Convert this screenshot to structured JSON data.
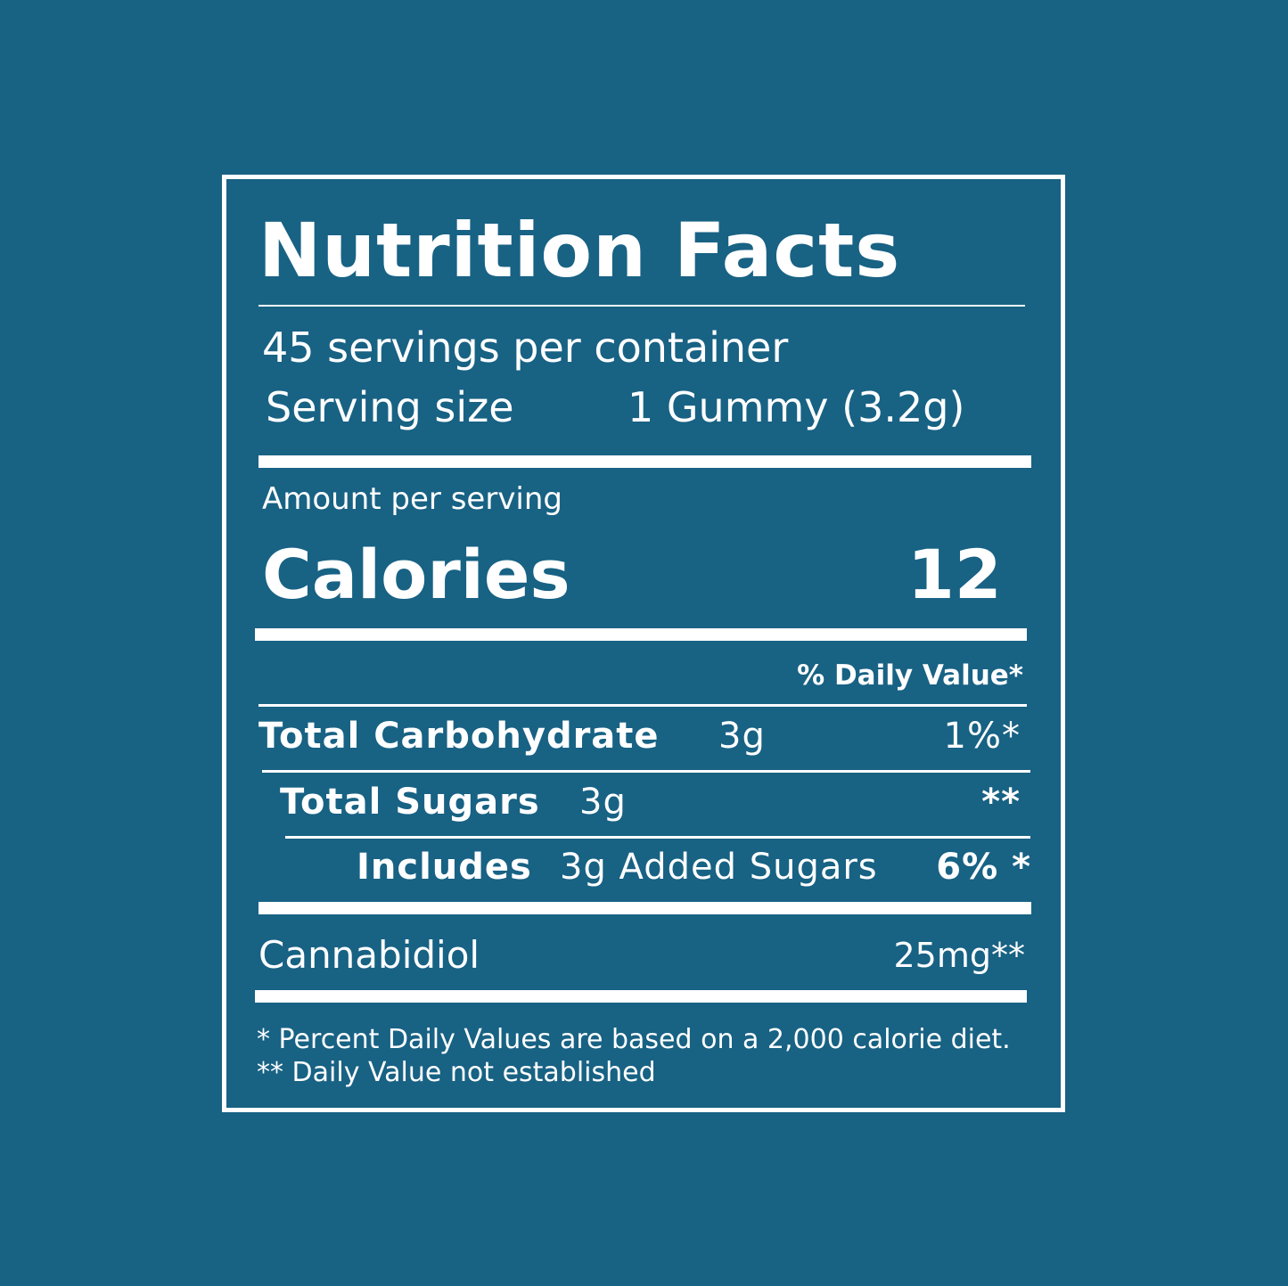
{
  "colors": {
    "background": "#186284",
    "text": "#ffffff"
  },
  "label": {
    "title": "Nutrition Facts",
    "servings_per_container": "45 servings per container",
    "serving_size_label": "Serving size",
    "serving_size_value": "1 Gummy (3.2g)",
    "amount_per_serving": "Amount per serving",
    "calories_label": "Calories",
    "calories_value": "12",
    "daily_value_header": "% Daily Value*",
    "nutrients": [
      {
        "label": "Total Carbohydrate",
        "amount": "3g",
        "dv": "1%*"
      },
      {
        "label": "Total Sugars",
        "amount": "3g",
        "dv": "**"
      },
      {
        "label": "Includes",
        "amount": "3g Added Sugars",
        "dv": "6% *"
      }
    ],
    "cannabidiol_label": "Cannabidiol",
    "cannabidiol_value": "25mg**",
    "footnote_1": "* Percent Daily Values are based on a 2,000 calorie diet.",
    "footnote_2": "** Daily Value not established"
  }
}
